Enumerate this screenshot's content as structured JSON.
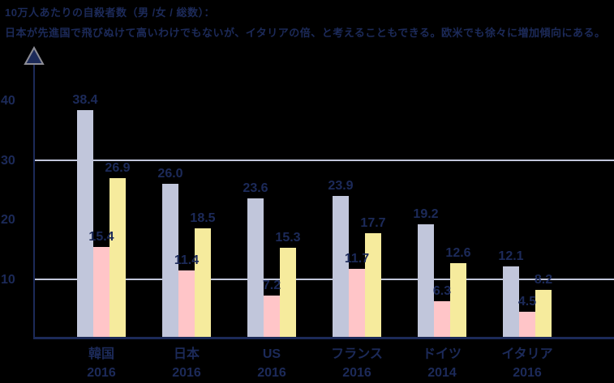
{
  "header": {
    "title": "10万人あたりの自殺者数（男 /女 / 総数）：",
    "subtitle": "日本が先進国で飛びぬけて高いわけでもないが、イタリアの倍、と考えることもできる。欧米でも徐々に増加傾向にある。"
  },
  "chart_data": {
    "type": "bar",
    "title": "10万人あたりの自殺者数（男 /女 / 総数）：",
    "annotation": "日本が先進国で飛びぬけて高いわけでもないが、イタリアの倍、と考えることもできる。欧米でも徐々に増加傾向にある。",
    "categories": [
      "韓国",
      "日本",
      "US",
      "フランス",
      "ドイツ",
      "イタリア"
    ],
    "category_years": [
      "2016",
      "2016",
      "2016",
      "2016",
      "2014",
      "2016"
    ],
    "series": [
      {
        "name": "男",
        "color": "#c1c6db",
        "values": [
          38.4,
          26.0,
          23.6,
          23.9,
          19.2,
          12.1
        ]
      },
      {
        "name": "女",
        "color": "#ffc5c8",
        "values": [
          15.4,
          11.4,
          7.2,
          11.7,
          6.3,
          4.5
        ]
      },
      {
        "name": "総数",
        "color": "#f6eb9d",
        "values": [
          26.9,
          18.5,
          15.3,
          17.7,
          12.6,
          8.2
        ]
      }
    ],
    "yticks": [
      10,
      20,
      30,
      40
    ],
    "gridlines": [
      10,
      30
    ],
    "ylim": [
      0,
      48
    ],
    "xlabel": "",
    "ylabel": "",
    "legend_position": "none",
    "grid": "horizontal-partial"
  },
  "colors": {
    "background": "#000000",
    "text": "#1c2a59",
    "axis": "#1c2a59",
    "gridline": "#c1c6db",
    "male_bar": "#c1c6db",
    "female_bar": "#ffc5c8",
    "total_bar": "#f6eb9d",
    "arrow_fill": "#1c2a59",
    "arrow_stroke": "#8d8d95"
  }
}
